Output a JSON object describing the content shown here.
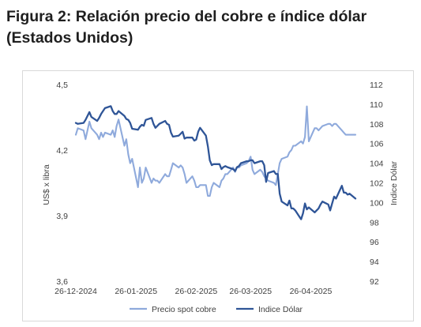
{
  "figure": {
    "title_line1": "Figura 2: Relación precio del cobre e índice dólar",
    "title_line2": "(Estados Unidos)"
  },
  "chart_data": {
    "type": "line",
    "title": "",
    "x_tick_labels": [
      "26-12-2024",
      "26-01-2025",
      "26-02-2025",
      "26-03-2025",
      "26-04-2025"
    ],
    "x_range": [
      "2024-12-26",
      "2025-05-19"
    ],
    "y_left": {
      "label": "US$ x libra",
      "ticks": [
        "3,6",
        "3,9",
        "4,2",
        "4,5"
      ],
      "range": [
        3.6,
        4.5
      ]
    },
    "y_right": {
      "label": "Indice Dólar",
      "ticks": [
        "92",
        "94",
        "96",
        "98",
        "100",
        "102",
        "104",
        "106",
        "108",
        "110",
        "112"
      ],
      "range": [
        92,
        112
      ]
    },
    "grid": false,
    "legend_position": "bottom",
    "series": [
      {
        "name": "Precio spot cobre",
        "axis": "left",
        "color": "#8faadc",
        "points": [
          [
            "2024-12-26",
            4.27
          ],
          [
            "2024-12-27",
            4.3
          ],
          [
            "2024-12-30",
            4.29
          ],
          [
            "2024-12-31",
            4.25
          ],
          [
            "2025-01-02",
            4.33
          ],
          [
            "2025-01-03",
            4.3
          ],
          [
            "2025-01-06",
            4.27
          ],
          [
            "2025-01-07",
            4.25
          ],
          [
            "2025-01-08",
            4.28
          ],
          [
            "2025-01-09",
            4.26
          ],
          [
            "2025-01-10",
            4.28
          ],
          [
            "2025-01-13",
            4.27
          ],
          [
            "2025-01-14",
            4.29
          ],
          [
            "2025-01-15",
            4.26
          ],
          [
            "2025-01-16",
            4.31
          ],
          [
            "2025-01-17",
            4.34
          ],
          [
            "2025-01-20",
            4.22
          ],
          [
            "2025-01-21",
            4.25
          ],
          [
            "2025-01-22",
            4.18
          ],
          [
            "2025-01-23",
            4.14
          ],
          [
            "2025-01-24",
            4.16
          ],
          [
            "2025-01-27",
            4.03
          ],
          [
            "2025-01-28",
            4.12
          ],
          [
            "2025-01-29",
            4.05
          ],
          [
            "2025-01-30",
            4.07
          ],
          [
            "2025-01-31",
            4.12
          ],
          [
            "2025-02-03",
            4.05
          ],
          [
            "2025-02-04",
            4.07
          ],
          [
            "2025-02-05",
            4.06
          ],
          [
            "2025-02-06",
            4.06
          ],
          [
            "2025-02-07",
            4.05
          ],
          [
            "2025-02-10",
            4.09
          ],
          [
            "2025-02-11",
            4.08
          ],
          [
            "2025-02-12",
            4.08
          ],
          [
            "2025-02-13",
            4.11
          ],
          [
            "2025-02-14",
            4.14
          ],
          [
            "2025-02-17",
            4.12
          ],
          [
            "2025-02-18",
            4.13
          ],
          [
            "2025-02-19",
            4.12
          ],
          [
            "2025-02-20",
            4.09
          ],
          [
            "2025-02-21",
            4.05
          ],
          [
            "2025-02-24",
            4.08
          ],
          [
            "2025-02-25",
            4.06
          ],
          [
            "2025-02-26",
            4.03
          ],
          [
            "2025-02-27",
            4.03
          ],
          [
            "2025-02-28",
            4.04
          ],
          [
            "2025-03-03",
            4.04
          ],
          [
            "2025-03-04",
            3.99
          ],
          [
            "2025-03-05",
            3.99
          ],
          [
            "2025-03-06",
            4.03
          ],
          [
            "2025-03-07",
            4.05
          ],
          [
            "2025-03-10",
            4.03
          ],
          [
            "2025-03-11",
            4.06
          ],
          [
            "2025-03-12",
            4.07
          ],
          [
            "2025-03-13",
            4.09
          ],
          [
            "2025-03-14",
            4.09
          ],
          [
            "2025-03-17",
            4.12
          ],
          [
            "2025-03-18",
            4.1
          ],
          [
            "2025-03-19",
            4.12
          ],
          [
            "2025-03-20",
            4.12
          ],
          [
            "2025-03-21",
            4.13
          ],
          [
            "2025-03-24",
            4.14
          ],
          [
            "2025-03-25",
            4.15
          ],
          [
            "2025-03-26",
            4.17
          ],
          [
            "2025-03-27",
            4.11
          ],
          [
            "2025-03-28",
            4.09
          ],
          [
            "2025-03-31",
            4.11
          ],
          [
            "2025-04-01",
            4.1
          ],
          [
            "2025-04-02",
            4.08
          ],
          [
            "2025-04-03",
            4.07
          ],
          [
            "2025-04-04",
            4.06
          ],
          [
            "2025-04-07",
            4.05
          ],
          [
            "2025-04-08",
            4.04
          ],
          [
            "2025-04-09",
            4.09
          ],
          [
            "2025-04-10",
            4.14
          ],
          [
            "2025-04-11",
            4.16
          ],
          [
            "2025-04-14",
            4.17
          ],
          [
            "2025-04-15",
            4.19
          ],
          [
            "2025-04-16",
            4.2
          ],
          [
            "2025-04-17",
            4.22
          ],
          [
            "2025-04-18",
            4.22
          ],
          [
            "2025-04-21",
            4.24
          ],
          [
            "2025-04-22",
            4.23
          ],
          [
            "2025-04-23",
            4.26
          ],
          [
            "2025-04-24",
            4.4
          ],
          [
            "2025-04-25",
            4.24
          ],
          [
            "2025-04-28",
            4.3
          ],
          [
            "2025-04-29",
            4.3
          ],
          [
            "2025-04-30",
            4.29
          ],
          [
            "2025-05-01",
            4.3
          ],
          [
            "2025-05-02",
            4.31
          ],
          [
            "2025-05-05",
            4.32
          ],
          [
            "2025-05-06",
            4.32
          ],
          [
            "2025-05-07",
            4.31
          ],
          [
            "2025-05-08",
            4.32
          ],
          [
            "2025-05-09",
            4.32
          ],
          [
            "2025-05-12",
            4.29
          ],
          [
            "2025-05-13",
            4.28
          ],
          [
            "2025-05-14",
            4.27
          ],
          [
            "2025-05-15",
            4.27
          ],
          [
            "2025-05-16",
            4.27
          ],
          [
            "2025-05-19",
            4.27
          ]
        ]
      },
      {
        "name": "Indice Dólar",
        "axis": "right",
        "color": "#2f5597",
        "points": [
          [
            "2024-12-26",
            108.1
          ],
          [
            "2024-12-27",
            108.0
          ],
          [
            "2024-12-30",
            108.1
          ],
          [
            "2024-12-31",
            108.4
          ],
          [
            "2025-01-02",
            109.2
          ],
          [
            "2025-01-03",
            108.7
          ],
          [
            "2025-01-06",
            108.3
          ],
          [
            "2025-01-07",
            108.6
          ],
          [
            "2025-01-08",
            109.0
          ],
          [
            "2025-01-09",
            109.3
          ],
          [
            "2025-01-10",
            109.6
          ],
          [
            "2025-01-13",
            109.8
          ],
          [
            "2025-01-14",
            109.3
          ],
          [
            "2025-01-15",
            109.0
          ],
          [
            "2025-01-16",
            109.0
          ],
          [
            "2025-01-17",
            109.3
          ],
          [
            "2025-01-20",
            108.8
          ],
          [
            "2025-01-21",
            108.5
          ],
          [
            "2025-01-22",
            108.4
          ],
          [
            "2025-01-23",
            108.1
          ],
          [
            "2025-01-24",
            107.5
          ],
          [
            "2025-01-27",
            107.4
          ],
          [
            "2025-01-28",
            107.7
          ],
          [
            "2025-01-29",
            107.9
          ],
          [
            "2025-01-30",
            107.8
          ],
          [
            "2025-01-31",
            108.4
          ],
          [
            "2025-02-03",
            108.6
          ],
          [
            "2025-02-04",
            108.0
          ],
          [
            "2025-02-05",
            107.6
          ],
          [
            "2025-02-06",
            107.8
          ],
          [
            "2025-02-07",
            108.0
          ],
          [
            "2025-02-10",
            108.3
          ],
          [
            "2025-02-11",
            108.0
          ],
          [
            "2025-02-12",
            107.9
          ],
          [
            "2025-02-13",
            107.1
          ],
          [
            "2025-02-14",
            106.7
          ],
          [
            "2025-02-17",
            106.8
          ],
          [
            "2025-02-18",
            107.0
          ],
          [
            "2025-02-19",
            107.2
          ],
          [
            "2025-02-20",
            106.5
          ],
          [
            "2025-02-21",
            106.6
          ],
          [
            "2025-02-24",
            106.6
          ],
          [
            "2025-02-25",
            106.3
          ],
          [
            "2025-02-26",
            106.4
          ],
          [
            "2025-02-27",
            107.2
          ],
          [
            "2025-02-28",
            107.6
          ],
          [
            "2025-03-03",
            106.8
          ],
          [
            "2025-03-04",
            105.7
          ],
          [
            "2025-03-05",
            104.3
          ],
          [
            "2025-03-06",
            103.8
          ],
          [
            "2025-03-07",
            103.9
          ],
          [
            "2025-03-10",
            103.9
          ],
          [
            "2025-03-11",
            103.4
          ],
          [
            "2025-03-12",
            103.6
          ],
          [
            "2025-03-13",
            103.7
          ],
          [
            "2025-03-14",
            103.6
          ],
          [
            "2025-03-17",
            103.4
          ],
          [
            "2025-03-18",
            103.2
          ],
          [
            "2025-03-19",
            103.6
          ],
          [
            "2025-03-20",
            103.7
          ],
          [
            "2025-03-21",
            104.0
          ],
          [
            "2025-03-24",
            104.2
          ],
          [
            "2025-03-25",
            104.2
          ],
          [
            "2025-03-26",
            104.3
          ],
          [
            "2025-03-27",
            104.3
          ],
          [
            "2025-03-28",
            104.0
          ],
          [
            "2025-03-31",
            104.2
          ],
          [
            "2025-04-01",
            104.2
          ],
          [
            "2025-04-02",
            103.8
          ],
          [
            "2025-04-03",
            102.1
          ],
          [
            "2025-04-04",
            103.0
          ],
          [
            "2025-04-07",
            103.2
          ],
          [
            "2025-04-08",
            102.9
          ],
          [
            "2025-04-09",
            102.9
          ],
          [
            "2025-04-10",
            100.9
          ],
          [
            "2025-04-11",
            100.1
          ],
          [
            "2025-04-14",
            99.7
          ],
          [
            "2025-04-15",
            100.2
          ],
          [
            "2025-04-16",
            99.4
          ],
          [
            "2025-04-17",
            99.4
          ],
          [
            "2025-04-18",
            99.2
          ],
          [
            "2025-04-21",
            98.3
          ],
          [
            "2025-04-22",
            98.9
          ],
          [
            "2025-04-23",
            99.9
          ],
          [
            "2025-04-24",
            99.3
          ],
          [
            "2025-04-25",
            99.5
          ],
          [
            "2025-04-28",
            99.0
          ],
          [
            "2025-04-29",
            99.2
          ],
          [
            "2025-04-30",
            99.4
          ],
          [
            "2025-05-01",
            99.8
          ],
          [
            "2025-05-02",
            100.1
          ],
          [
            "2025-05-05",
            99.8
          ],
          [
            "2025-05-06",
            99.2
          ],
          [
            "2025-05-07",
            99.9
          ],
          [
            "2025-05-08",
            100.6
          ],
          [
            "2025-05-09",
            100.4
          ],
          [
            "2025-05-12",
            101.7
          ],
          [
            "2025-05-13",
            101.0
          ],
          [
            "2025-05-14",
            101.0
          ],
          [
            "2025-05-15",
            100.8
          ],
          [
            "2025-05-16",
            100.9
          ],
          [
            "2025-05-19",
            100.4
          ]
        ]
      }
    ]
  }
}
